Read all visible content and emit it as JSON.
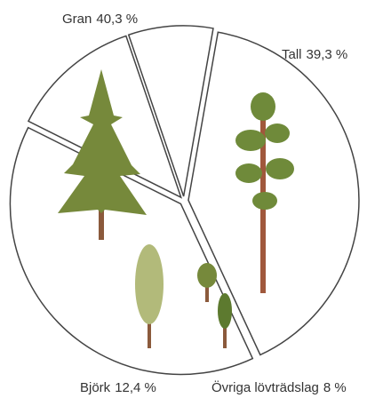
{
  "chart_data": {
    "type": "pie",
    "categories": [
      "Gran",
      "Tall",
      "Björk",
      "Övriga lövträdslag"
    ],
    "values": [
      40.3,
      39.3,
      12.4,
      8
    ],
    "value_labels": [
      "40,3 %",
      "39,3 %",
      "12,4 %",
      "8 %"
    ],
    "color": "#ffffff"
  }
}
